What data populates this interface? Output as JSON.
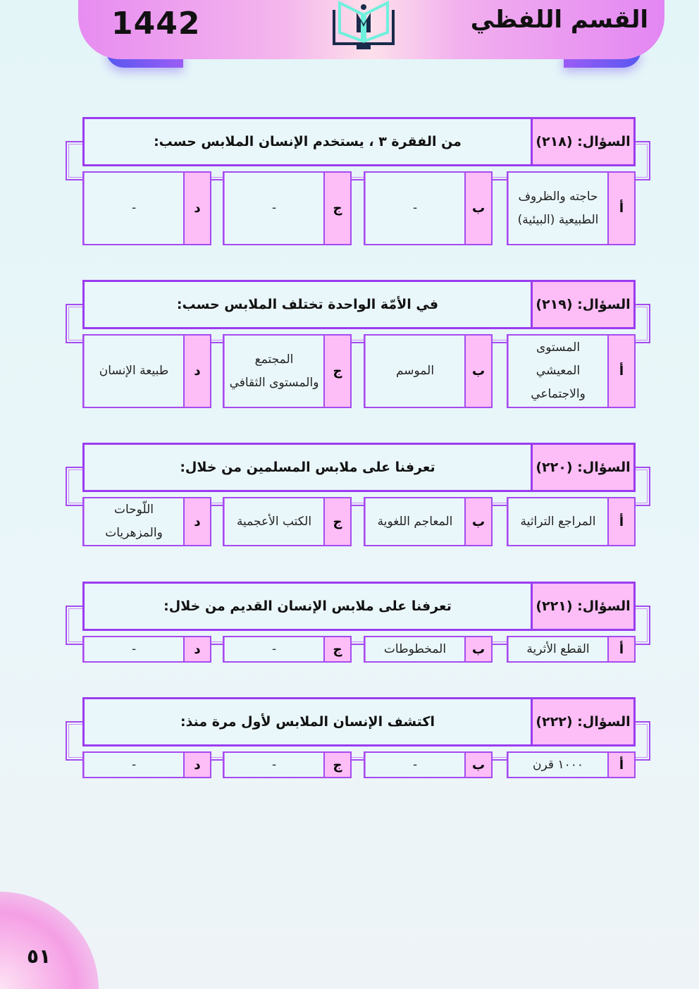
{
  "header": {
    "year": "1442",
    "title": "القسم اللفظي",
    "logo": "book-m-logo"
  },
  "page_number": "٥١",
  "questions": [
    {
      "label": "السؤال: (٢١٨)",
      "text": "من الفقرة ٣ ، يستخدم الإنسان الملابس حسب:",
      "options": [
        {
          "letter": "أ",
          "text": "حاجته والظروف الطبيعية (البيئية)"
        },
        {
          "letter": "ب",
          "text": "-"
        },
        {
          "letter": "ج",
          "text": "-"
        },
        {
          "letter": "د",
          "text": "-"
        }
      ]
    },
    {
      "label": "السؤال: (٢١٩)",
      "text": "في الأمّة الواحدة تختلف الملابس حسب:",
      "options": [
        {
          "letter": "أ",
          "text": "المستوى المعيشي والاجتماعي"
        },
        {
          "letter": "ب",
          "text": "الموسم"
        },
        {
          "letter": "ج",
          "text": "المجتمع والمستوى الثقافي"
        },
        {
          "letter": "د",
          "text": "طبيعة الإنسان"
        }
      ]
    },
    {
      "label": "السؤال: (٢٢٠)",
      "text": "تعرفنا على ملابس المسلمين من خلال:",
      "options": [
        {
          "letter": "أ",
          "text": "المراجع التراثية"
        },
        {
          "letter": "ب",
          "text": "المعاجم اللغوية"
        },
        {
          "letter": "ج",
          "text": "الكتب الأعجمية"
        },
        {
          "letter": "د",
          "text": "اللّوحات والمزهريات"
        }
      ]
    },
    {
      "label": "السؤال: (٢٢١)",
      "text": "تعرفنا على ملابس الإنسان القديم من خلال:",
      "options": [
        {
          "letter": "أ",
          "text": "القطع الأثرية"
        },
        {
          "letter": "ب",
          "text": "المخطوطات"
        },
        {
          "letter": "ج",
          "text": "-"
        },
        {
          "letter": "د",
          "text": "-"
        }
      ]
    },
    {
      "label": "السؤال: (٢٢٢)",
      "text": "اكتشف الإنسان الملابس لأول مرة منذ:",
      "options": [
        {
          "letter": "أ",
          "text": "١٠٠٠ قرن"
        },
        {
          "letter": "ب",
          "text": "-"
        },
        {
          "letter": "ج",
          "text": "-"
        },
        {
          "letter": "د",
          "text": "-"
        }
      ]
    }
  ]
}
